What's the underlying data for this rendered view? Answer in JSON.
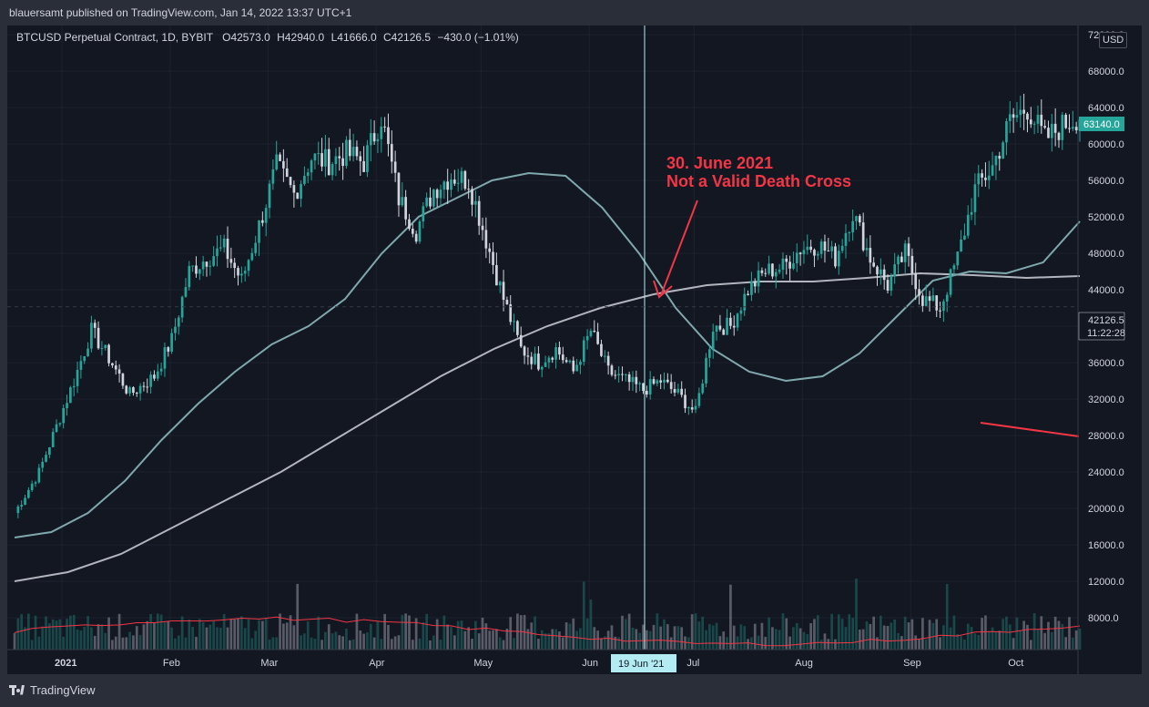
{
  "publisher_line": "blauersamt published on TradingView.com, Jan 14, 2022 13:37 UTC+1",
  "symbol": {
    "title": "BTCUSD Perpetual Contract, 1D, BYBIT",
    "open_label": "O",
    "open": "42573.0",
    "high_label": "H",
    "high": "42940.0",
    "low_label": "L",
    "low": "41666.0",
    "close_label": "C",
    "close": "42126.5",
    "change": "−430.0 (−1.01%)"
  },
  "currency": "USD",
  "footer": {
    "logo_text": "TradingView"
  },
  "chart_data": {
    "type": "line",
    "price_axis": {
      "ylim": [
        4500,
        73000
      ],
      "ticks": [
        8000,
        12000,
        16000,
        20000,
        24000,
        28000,
        32000,
        36000,
        40000,
        44000,
        48000,
        52000,
        56000,
        60000,
        64000,
        68000,
        72000
      ],
      "tick_labels": [
        "8000.0",
        "12000.0",
        "16000.0",
        "20000.0",
        "24000.0",
        "28000.0",
        "32000.0",
        "36000.0",
        "40000.0",
        "44000.0",
        "48000.0",
        "52000.0",
        "56000.0",
        "60000.0",
        "64000.0",
        "68000.0",
        "72000.0"
      ]
    },
    "time_axis": {
      "labels": [
        "2021",
        "Feb",
        "Mar",
        "Apr",
        "May",
        "Jun",
        "Jul",
        "Aug",
        "Sep",
        "Oct"
      ],
      "label_day_index": [
        0,
        31,
        59,
        90,
        120,
        151,
        181,
        212,
        243,
        273
      ],
      "total_days": 305
    },
    "price_series": {
      "name": "BTCUSD",
      "x_day_index": [
        0,
        7,
        12,
        17,
        22,
        27,
        33,
        40,
        45,
        50,
        55,
        60,
        65,
        70,
        75,
        80,
        85,
        90,
        95,
        100,
        105,
        110,
        115,
        120,
        125,
        130,
        135,
        140,
        145,
        150,
        155,
        160,
        165,
        170,
        175,
        180,
        185,
        190,
        195,
        200,
        205,
        210,
        215,
        220,
        225,
        230,
        235,
        240,
        245,
        250,
        255,
        260,
        265,
        270,
        275,
        280,
        285,
        290,
        295,
        300,
        305
      ],
      "values": [
        19500,
        24000,
        29000,
        34000,
        39500,
        36500,
        32500,
        34500,
        38500,
        46000,
        47500,
        48500,
        45000,
        51000,
        57500,
        54500,
        58500,
        58000,
        59000,
        58000,
        63000,
        54000,
        50500,
        55000,
        56500,
        56000,
        49500,
        43000,
        37500,
        36000,
        37500,
        35000,
        39500,
        35000,
        34000,
        33000,
        34000,
        32500,
        30500,
        40000,
        40000,
        44000,
        46000,
        46500,
        48500,
        49000,
        47500,
        52500,
        47500,
        44500,
        48000,
        43000,
        42000,
        47500,
        55000,
        57500,
        62500,
        64000,
        60500,
        62000,
        63140
      ]
    },
    "indicators": [
      {
        "type": "moving-average",
        "color": "#7fa8ad",
        "values": [
          16800,
          17400,
          19500,
          23000,
          27500,
          31500,
          35000,
          38000,
          40000,
          43000,
          48000,
          52000,
          54000,
          56000,
          56800,
          56500,
          53000,
          48000,
          42000,
          37500,
          35000,
          34000,
          34500,
          37000,
          41000,
          45000,
          46000,
          45800,
          47000,
          51500
        ]
      },
      {
        "type": "moving-average",
        "color": "#b2b5be",
        "values": [
          12000,
          13000,
          15000,
          18000,
          21000,
          24000,
          27500,
          31000,
          34500,
          37500,
          40000,
          42000,
          43500,
          44500,
          44900,
          44900,
          45300,
          45800,
          45600,
          45300,
          45500
        ]
      }
    ],
    "volume_ma_color": "#f23645",
    "current_price_label": "63140.0",
    "crosshair": {
      "price_label": "42126.5",
      "countdown": "11:22:28",
      "date_label": "19 Jun '21"
    },
    "annotations": [
      {
        "text": "30. June 2021",
        "color": "#f23645"
      },
      {
        "text": "Not a Valid Death Cross",
        "color": "#f23645"
      }
    ],
    "colors": {
      "up": "#26a69a",
      "down": "#d1d4dc",
      "background": "#131722",
      "grid": "#1e222d"
    }
  }
}
